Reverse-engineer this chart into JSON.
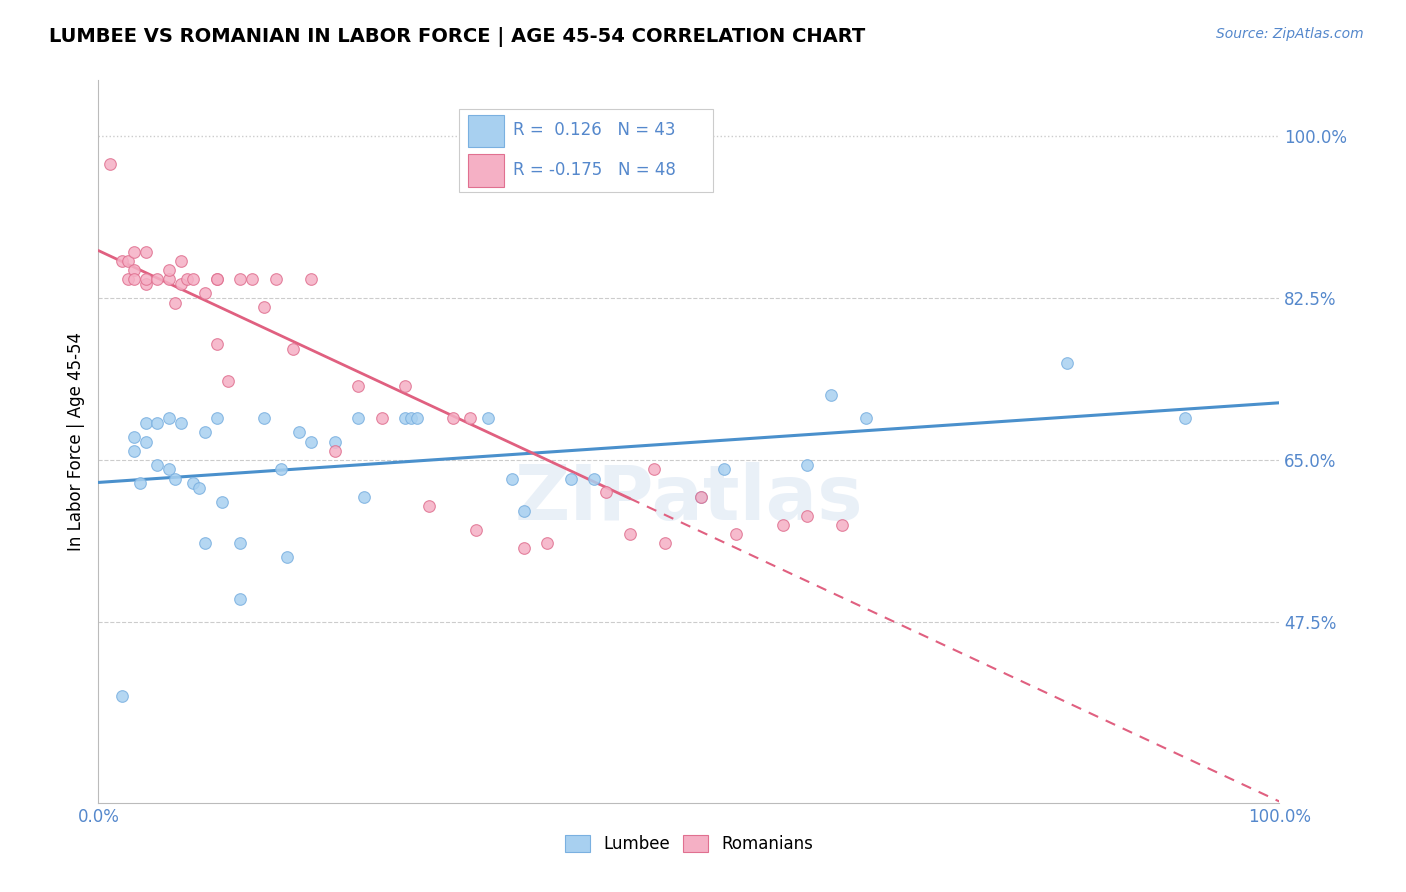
{
  "title": "LUMBEE VS ROMANIAN IN LABOR FORCE | AGE 45-54 CORRELATION CHART",
  "source_text": "Source: ZipAtlas.com",
  "ylabel": "In Labor Force | Age 45-54",
  "xlim": [
    0.0,
    1.0
  ],
  "ylim": [
    0.28,
    1.06
  ],
  "yticks": [
    0.475,
    0.65,
    0.825,
    1.0
  ],
  "ytick_labels": [
    "47.5%",
    "65.0%",
    "82.5%",
    "100.0%"
  ],
  "xticks": [
    0.0,
    0.125,
    0.25,
    0.375,
    0.5,
    0.625,
    0.75,
    0.875,
    1.0
  ],
  "xtick_labels": [
    "0.0%",
    "",
    "",
    "",
    "",
    "",
    "",
    "",
    "100.0%"
  ],
  "lumbee_R": 0.126,
  "lumbee_N": 43,
  "romanian_R": -0.175,
  "romanian_N": 48,
  "lumbee_color": "#A8D0F0",
  "lumbee_edge_color": "#7AB0E0",
  "romanian_color": "#F5B0C5",
  "romanian_edge_color": "#E07090",
  "lumbee_line_color": "#4A90CC",
  "romanian_line_color": "#E06080",
  "grid_color": "#CCCCCC",
  "axis_color": "#BBBBBB",
  "label_color": "#5588CC",
  "watermark": "ZIPatlas",
  "lumbee_x": [
    0.02,
    0.03,
    0.03,
    0.035,
    0.04,
    0.04,
    0.05,
    0.05,
    0.06,
    0.06,
    0.065,
    0.07,
    0.08,
    0.085,
    0.09,
    0.09,
    0.1,
    0.105,
    0.12,
    0.12,
    0.14,
    0.155,
    0.16,
    0.17,
    0.18,
    0.2,
    0.22,
    0.225,
    0.26,
    0.265,
    0.27,
    0.33,
    0.35,
    0.36,
    0.4,
    0.42,
    0.51,
    0.53,
    0.6,
    0.62,
    0.65,
    0.82,
    0.92
  ],
  "lumbee_y": [
    0.395,
    0.675,
    0.66,
    0.625,
    0.69,
    0.67,
    0.645,
    0.69,
    0.695,
    0.64,
    0.63,
    0.69,
    0.625,
    0.62,
    0.56,
    0.68,
    0.695,
    0.605,
    0.56,
    0.5,
    0.695,
    0.64,
    0.545,
    0.68,
    0.67,
    0.67,
    0.695,
    0.61,
    0.695,
    0.695,
    0.695,
    0.695,
    0.63,
    0.595,
    0.63,
    0.63,
    0.61,
    0.64,
    0.645,
    0.72,
    0.695,
    0.755,
    0.695
  ],
  "romanian_x": [
    0.01,
    0.02,
    0.025,
    0.025,
    0.03,
    0.03,
    0.03,
    0.04,
    0.04,
    0.04,
    0.05,
    0.06,
    0.06,
    0.065,
    0.07,
    0.07,
    0.075,
    0.08,
    0.09,
    0.1,
    0.1,
    0.1,
    0.11,
    0.12,
    0.13,
    0.14,
    0.15,
    0.165,
    0.18,
    0.2,
    0.22,
    0.24,
    0.26,
    0.28,
    0.3,
    0.315,
    0.32,
    0.36,
    0.38,
    0.43,
    0.45,
    0.47,
    0.48,
    0.51,
    0.54,
    0.58,
    0.6,
    0.63
  ],
  "romanian_y": [
    0.97,
    0.865,
    0.845,
    0.865,
    0.875,
    0.855,
    0.845,
    0.875,
    0.84,
    0.845,
    0.845,
    0.845,
    0.855,
    0.82,
    0.865,
    0.84,
    0.845,
    0.845,
    0.83,
    0.845,
    0.775,
    0.845,
    0.735,
    0.845,
    0.845,
    0.815,
    0.845,
    0.77,
    0.845,
    0.66,
    0.73,
    0.695,
    0.73,
    0.6,
    0.695,
    0.695,
    0.575,
    0.555,
    0.56,
    0.615,
    0.57,
    0.64,
    0.56,
    0.61,
    0.57,
    0.58,
    0.59,
    0.58
  ]
}
